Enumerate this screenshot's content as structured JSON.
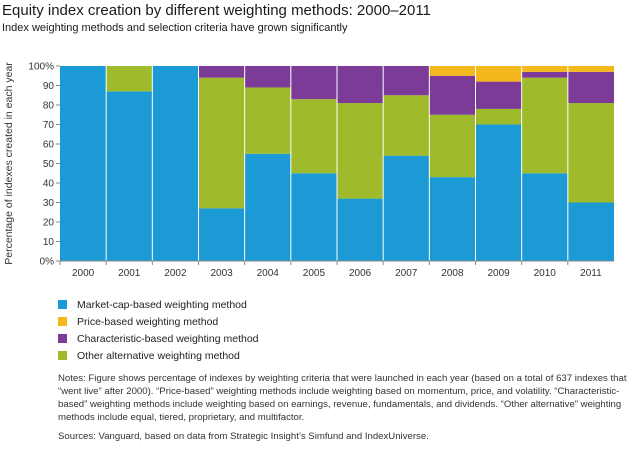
{
  "header": {
    "title": "Equity index creation by different weighting methods: 2000–2011",
    "subtitle": "Index weighting methods and selection criteria have grown significantly"
  },
  "chart_data": {
    "type": "bar",
    "stacked": true,
    "ylabel": "Percentage of indexes created in each year",
    "ylim": [
      0,
      100
    ],
    "yticks": [
      "0%",
      "10",
      "20",
      "30",
      "40",
      "50",
      "60",
      "70",
      "80",
      "90",
      "100%"
    ],
    "categories": [
      "2000",
      "2001",
      "2002",
      "2003",
      "2004",
      "2005",
      "2006",
      "2007",
      "2008",
      "2009",
      "2010",
      "2011"
    ],
    "series": [
      {
        "name": "Market-cap-based weighting method",
        "color": "#1b9ad6",
        "values": [
          100,
          87,
          100,
          27,
          55,
          45,
          32,
          54,
          43,
          70,
          45,
          30
        ]
      },
      {
        "name": "Other alternative weighting method",
        "color": "#9fba2a",
        "values": [
          0,
          13,
          0,
          67,
          34,
          38,
          49,
          31,
          32,
          8,
          49,
          51
        ]
      },
      {
        "name": "Characteristic-based weighting method",
        "color": "#7b3b97",
        "values": [
          0,
          0,
          0,
          6,
          11,
          17,
          19,
          15,
          20,
          14,
          3,
          16
        ]
      },
      {
        "name": "Price-based weighting method",
        "color": "#f5b81c",
        "values": [
          0,
          0,
          0,
          0,
          0,
          0,
          0,
          0,
          5,
          8,
          3,
          3
        ]
      }
    ],
    "legend_order": [
      0,
      3,
      2,
      1
    ],
    "legend": "bottom-left",
    "grid": false
  },
  "footer": {
    "notes": "Notes: Figure shows percentage of indexes by weighting criteria that were launched in each year (based on a total of 637 indexes that “went live” after 2000). “Price-based” weighting methods include weighting based on momentum, price, and volatility. “Characteristic-based” weighting methods include weighting based on earnings, revenue, fundamentals, and dividends. “Other alternative” weighting methods include equal, tiered, proprietary, and multifactor.",
    "sources": "Sources: Vanguard, based on data from Strategic Insight’s Simfund and IndexUniverse."
  }
}
